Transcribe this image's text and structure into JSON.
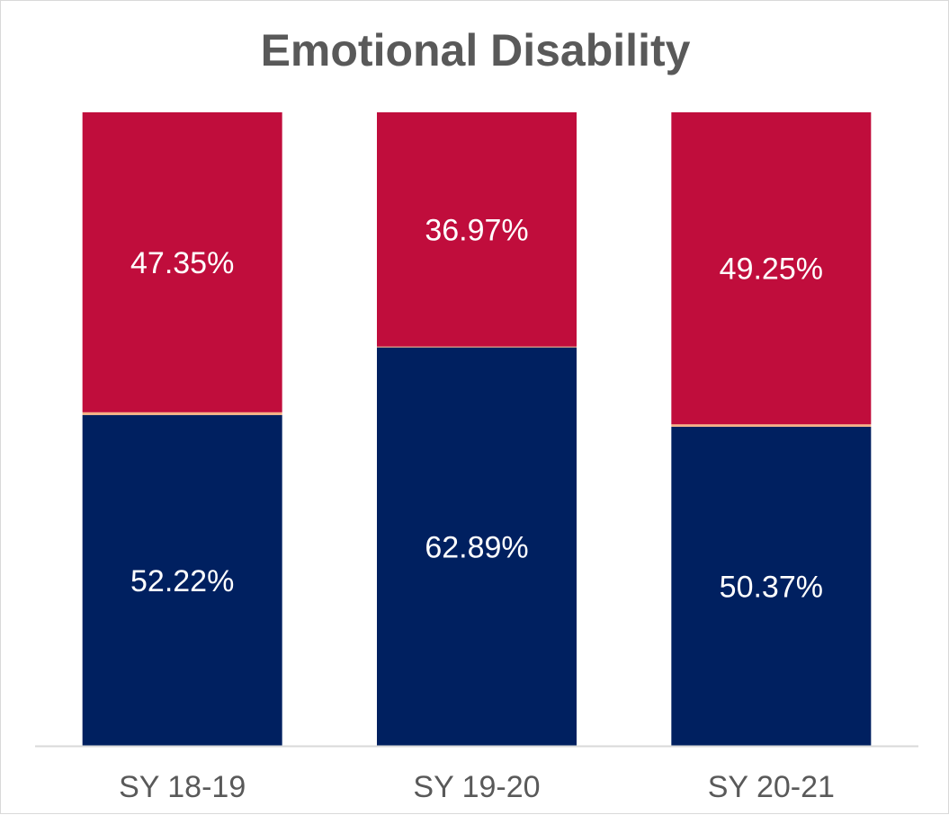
{
  "chart_data": {
    "type": "bar",
    "stacked": true,
    "title": "Emotional Disability",
    "xlabel": "",
    "ylabel": "",
    "categories": [
      "SY 18-19",
      "SY 19-20",
      "SY 20-21"
    ],
    "series": [
      {
        "values": [
          52.22,
          62.89,
          50.37
        ],
        "labels": [
          "52.22%",
          "62.89%",
          "50.37%"
        ],
        "color": "#002060"
      },
      {
        "values": [
          0.43,
          0.14,
          0.38
        ],
        "labels": [
          "",
          "",
          ""
        ],
        "color": "#f4b183"
      },
      {
        "values": [
          47.35,
          36.97,
          49.25
        ],
        "labels": [
          "47.35%",
          "36.97%",
          "49.25%"
        ],
        "color": "#c00d3c"
      }
    ],
    "ylim": [
      0,
      100
    ],
    "grid": false,
    "legend": "none"
  }
}
